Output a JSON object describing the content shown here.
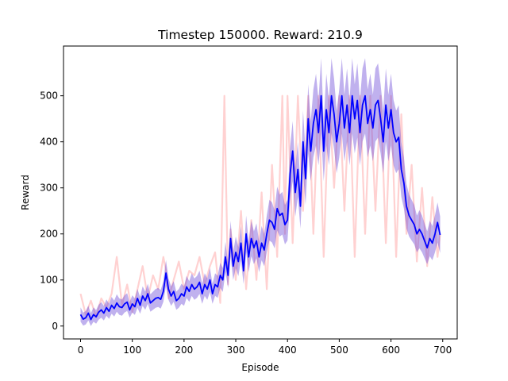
{
  "chart_data": {
    "type": "line",
    "title": "Timestep 150000. Reward: 210.9",
    "xlabel": "Episode",
    "ylabel": "Reward",
    "xlim": [
      -33,
      728
    ],
    "ylim": [
      -28,
      608
    ],
    "xticks": [
      0,
      100,
      200,
      300,
      400,
      500,
      600,
      700
    ],
    "yticks": [
      0,
      100,
      200,
      300,
      400,
      500
    ],
    "grid": false,
    "legend": "none",
    "colors": {
      "raw": "#ffb3b3",
      "band": "#6a45d6",
      "mean": "#0000ff"
    },
    "series": [
      {
        "role": "raw-episode-reward",
        "x": [
          0,
          10,
          20,
          30,
          40,
          50,
          60,
          70,
          80,
          90,
          100,
          110,
          120,
          130,
          140,
          150,
          160,
          165,
          170,
          180,
          190,
          200,
          210,
          220,
          230,
          240,
          250,
          260,
          270,
          278,
          285,
          290,
          300,
          310,
          320,
          330,
          340,
          350,
          360,
          370,
          380,
          390,
          395,
          400,
          410,
          420,
          430,
          440,
          450,
          460,
          470,
          480,
          490,
          500,
          510,
          520,
          530,
          540,
          550,
          560,
          570,
          580,
          590,
          600,
          610,
          620,
          630,
          640,
          650,
          660,
          670,
          680,
          690,
          695
        ],
        "y": [
          70,
          25,
          55,
          20,
          60,
          40,
          70,
          150,
          45,
          90,
          30,
          80,
          130,
          60,
          110,
          80,
          150,
          120,
          60,
          100,
          140,
          80,
          120,
          110,
          150,
          90,
          130,
          160,
          50,
          500,
          90,
          210,
          100,
          250,
          80,
          230,
          100,
          290,
          80,
          350,
          150,
          500,
          200,
          500,
          180,
          500,
          250,
          500,
          200,
          500,
          150,
          500,
          300,
          500,
          250,
          500,
          150,
          500,
          200,
          500,
          250,
          500,
          180,
          500,
          150,
          460,
          200,
          350,
          140,
          300,
          130,
          280,
          150,
          200
        ]
      },
      {
        "role": "smoothed-mean",
        "x": [
          0,
          5,
          10,
          15,
          20,
          25,
          30,
          35,
          40,
          45,
          50,
          55,
          60,
          65,
          70,
          75,
          80,
          85,
          90,
          95,
          100,
          105,
          110,
          115,
          120,
          125,
          130,
          135,
          140,
          145,
          150,
          155,
          160,
          165,
          170,
          175,
          180,
          185,
          190,
          195,
          200,
          205,
          210,
          215,
          220,
          225,
          230,
          235,
          240,
          245,
          250,
          255,
          260,
          265,
          270,
          275,
          280,
          285,
          290,
          295,
          300,
          305,
          310,
          315,
          320,
          325,
          330,
          335,
          340,
          345,
          350,
          355,
          360,
          365,
          370,
          375,
          380,
          385,
          390,
          395,
          400,
          405,
          410,
          415,
          420,
          425,
          430,
          435,
          440,
          445,
          450,
          455,
          460,
          465,
          470,
          475,
          480,
          485,
          490,
          495,
          500,
          505,
          510,
          515,
          520,
          525,
          530,
          535,
          540,
          545,
          550,
          555,
          560,
          565,
          570,
          575,
          580,
          585,
          590,
          595,
          600,
          605,
          610,
          615,
          620,
          625,
          630,
          635,
          640,
          645,
          650,
          655,
          660,
          665,
          670,
          675,
          680,
          685,
          690,
          695
        ],
        "y": [
          25,
          15,
          18,
          28,
          14,
          25,
          20,
          30,
          35,
          28,
          40,
          32,
          45,
          38,
          50,
          42,
          40,
          48,
          52,
          35,
          48,
          42,
          60,
          45,
          65,
          55,
          70,
          50,
          55,
          60,
          62,
          58,
          75,
          115,
          80,
          65,
          75,
          55,
          60,
          70,
          65,
          85,
          75,
          90,
          80,
          85,
          95,
          70,
          90,
          80,
          100,
          70,
          90,
          85,
          110,
          100,
          150,
          110,
          190,
          130,
          160,
          140,
          180,
          120,
          200,
          150,
          190,
          170,
          185,
          150,
          180,
          165,
          200,
          230,
          225,
          210,
          255,
          240,
          245,
          220,
          230,
          330,
          380,
          290,
          340,
          260,
          400,
          320,
          450,
          380,
          440,
          470,
          420,
          500,
          380,
          470,
          420,
          500,
          460,
          400,
          440,
          500,
          430,
          480,
          420,
          500,
          450,
          490,
          420,
          480,
          500,
          440,
          470,
          430,
          480,
          490,
          450,
          400,
          480,
          430,
          470,
          420,
          400,
          410,
          340,
          310,
          260,
          240,
          230,
          220,
          200,
          210,
          200,
          185,
          170,
          190,
          180,
          200,
          225,
          198
        ]
      }
    ]
  }
}
